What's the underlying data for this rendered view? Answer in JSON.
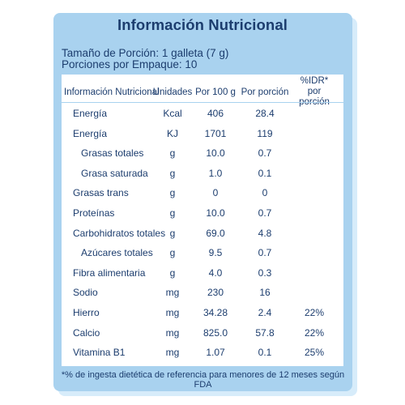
{
  "title": "Información Nutricional",
  "serving": {
    "size": "Tamaño de Porción: 1 galleta (7 g)",
    "per_pack": "Porciones por Empaque: 10"
  },
  "headers": {
    "name": "Información Nutricional",
    "units": "Unidades",
    "per100": "Por 100 g",
    "perport": "Por porción",
    "idr": "%IDR*\npor porción"
  },
  "rows": [
    {
      "name": "Energía",
      "unit": "Kcal",
      "per100": "406",
      "perport": "28.4",
      "idr": ""
    },
    {
      "name": "Energía",
      "unit": "KJ",
      "per100": "1701",
      "perport": "119",
      "idr": ""
    },
    {
      "name": "Grasas totales",
      "unit": "g",
      "per100": "10.0",
      "perport": "0.7",
      "idr": ""
    },
    {
      "name": "Grasa saturada",
      "unit": "g",
      "per100": "1.0",
      "perport": "0.1",
      "idr": ""
    },
    {
      "name": "Grasas trans",
      "unit": "g",
      "per100": "0",
      "perport": "0",
      "idr": ""
    },
    {
      "name": "Proteínas",
      "unit": "g",
      "per100": "10.0",
      "perport": "0.7",
      "idr": ""
    },
    {
      "name": "Carbohidratos totales",
      "unit": "g",
      "per100": "69.0",
      "perport": "4.8",
      "idr": ""
    },
    {
      "name": "Azúcares totales",
      "unit": "g",
      "per100": "9.5",
      "perport": "0.7",
      "idr": ""
    },
    {
      "name": "Fibra alimentaria",
      "unit": "g",
      "per100": "4.0",
      "perport": "0.3",
      "idr": ""
    },
    {
      "name": "Sodio",
      "unit": "mg",
      "per100": "230",
      "perport": "16",
      "idr": ""
    },
    {
      "name": "Hierro",
      "unit": "mg",
      "per100": "34.28",
      "perport": "2.4",
      "idr": "22%"
    },
    {
      "name": "Calcio",
      "unit": "mg",
      "per100": "825.0",
      "perport": "57.8",
      "idr": "22%"
    },
    {
      "name": "Vitamina B1",
      "unit": "mg",
      "per100": "1.07",
      "perport": "0.1",
      "idr": "25%"
    }
  ],
  "footnote": "*% de ingesta dietética de referencia para menores de 12 meses según FDA"
}
